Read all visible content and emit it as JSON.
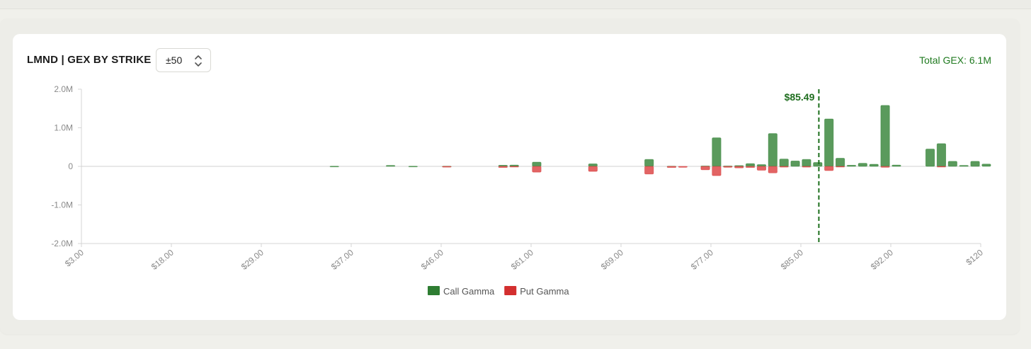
{
  "header": {
    "title": "LMND | GEX BY STRIKE",
    "range_value": "±50",
    "total_gex": "Total GEX: 6.1M"
  },
  "colors": {
    "call": "#2e7d32",
    "call_fill": "#5a9a5c",
    "put": "#d32f2f",
    "put_fill": "#e26464",
    "price_line": "#1b6e1b",
    "total_gex_text": "#1f7a1f"
  },
  "chart_data": {
    "type": "bar",
    "title": "LMND | GEX BY STRIKE",
    "xlabel": "",
    "ylabel": "",
    "ylim": [
      -2000000,
      2000000
    ],
    "y_ticks": [
      2000000,
      1000000,
      0,
      -1000000,
      -2000000
    ],
    "y_tick_labels": [
      "2.0M",
      "1.0M",
      "0",
      "-1.0M",
      "-2.0M"
    ],
    "x_tick_labels": [
      "$3.00",
      "$18.00",
      "$29.00",
      "$37.00",
      "$46.00",
      "$61.00",
      "$69.00",
      "$77.00",
      "$85.00",
      "$92.00",
      "$120"
    ],
    "strike_count": 80,
    "x_tick_strike_index": [
      0,
      8,
      16,
      24,
      32,
      40,
      48,
      56,
      64,
      72,
      80
    ],
    "current_price_label": "$85.49",
    "current_price_index": 65.6,
    "legend": [
      "Call Gamma",
      "Put Gamma"
    ],
    "legend_position": "bottom-center",
    "grid": false,
    "series": [
      {
        "name": "Call Gamma",
        "points": [
          {
            "i": 22,
            "v": 5000
          },
          {
            "i": 27,
            "v": 25000
          },
          {
            "i": 29,
            "v": 5000
          },
          {
            "i": 32,
            "v": 5000
          },
          {
            "i": 37,
            "v": 30000
          },
          {
            "i": 38,
            "v": 35000
          },
          {
            "i": 40,
            "v": 110000
          },
          {
            "i": 45,
            "v": 65000
          },
          {
            "i": 50,
            "v": 180000
          },
          {
            "i": 52,
            "v": 5000
          },
          {
            "i": 55,
            "v": 10000
          },
          {
            "i": 56,
            "v": 740000
          },
          {
            "i": 57,
            "v": 10000
          },
          {
            "i": 58,
            "v": 20000
          },
          {
            "i": 59,
            "v": 70000
          },
          {
            "i": 60,
            "v": 45000
          },
          {
            "i": 61,
            "v": 850000
          },
          {
            "i": 62,
            "v": 190000
          },
          {
            "i": 63,
            "v": 140000
          },
          {
            "i": 64,
            "v": 180000
          },
          {
            "i": 65,
            "v": 100000
          },
          {
            "i": 66,
            "v": 1230000
          },
          {
            "i": 67,
            "v": 210000
          },
          {
            "i": 68,
            "v": 30000
          },
          {
            "i": 69,
            "v": 80000
          },
          {
            "i": 70,
            "v": 55000
          },
          {
            "i": 71,
            "v": 1580000
          },
          {
            "i": 72,
            "v": 35000
          },
          {
            "i": 75,
            "v": 450000
          },
          {
            "i": 76,
            "v": 590000
          },
          {
            "i": 77,
            "v": 130000
          },
          {
            "i": 78,
            "v": 25000
          },
          {
            "i": 79,
            "v": 130000
          },
          {
            "i": 80,
            "v": 60000
          }
        ]
      },
      {
        "name": "Put Gamma",
        "points": [
          {
            "i": 32,
            "v": -20000
          },
          {
            "i": 37,
            "v": -30000
          },
          {
            "i": 38,
            "v": -15000
          },
          {
            "i": 40,
            "v": -150000
          },
          {
            "i": 45,
            "v": -130000
          },
          {
            "i": 50,
            "v": -200000
          },
          {
            "i": 52,
            "v": -30000
          },
          {
            "i": 53,
            "v": -25000
          },
          {
            "i": 55,
            "v": -90000
          },
          {
            "i": 56,
            "v": -240000
          },
          {
            "i": 57,
            "v": -25000
          },
          {
            "i": 58,
            "v": -40000
          },
          {
            "i": 59,
            "v": -30000
          },
          {
            "i": 60,
            "v": -100000
          },
          {
            "i": 61,
            "v": -170000
          },
          {
            "i": 62,
            "v": -20000
          },
          {
            "i": 64,
            "v": -20000
          },
          {
            "i": 66,
            "v": -110000
          },
          {
            "i": 67,
            "v": -15000
          },
          {
            "i": 71,
            "v": -25000
          },
          {
            "i": 76,
            "v": -15000
          }
        ]
      }
    ]
  }
}
